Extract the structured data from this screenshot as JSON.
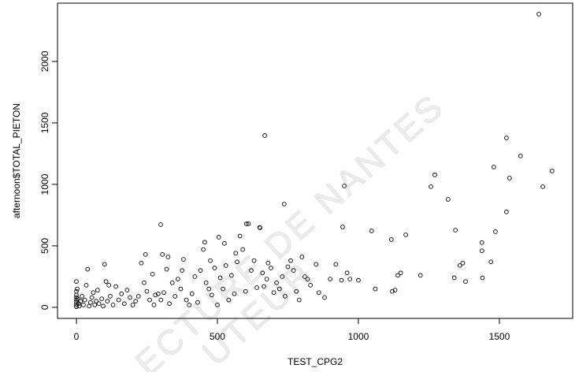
{
  "chart_data": {
    "type": "scatter",
    "x_label": "TEST_CPG2",
    "y_label": "afternoon$TOTAL_PIETON",
    "watermark": [
      "ECTURE DE NANTES",
      "UTEUR"
    ],
    "color": "#000000",
    "xlim": [
      -67,
      1760
    ],
    "ylim": [
      -90,
      2474
    ],
    "xticks": [
      0,
      500,
      1000,
      1500
    ],
    "yticks": [
      0,
      500,
      1000,
      1500,
      2000
    ],
    "x": [
      0,
      0,
      0,
      0,
      0,
      0,
      0,
      0,
      3,
      5,
      8,
      10,
      15,
      20,
      25,
      30,
      35,
      40,
      45,
      50,
      55,
      60,
      65,
      70,
      75,
      80,
      90,
      95,
      100,
      105,
      110,
      115,
      120,
      130,
      140,
      150,
      160,
      170,
      180,
      190,
      200,
      210,
      220,
      230,
      240,
      245,
      250,
      260,
      270,
      275,
      280,
      290,
      299,
      300,
      305,
      310,
      320,
      325,
      330,
      340,
      350,
      360,
      370,
      375,
      380,
      390,
      400,
      410,
      420,
      430,
      440,
      450,
      455,
      460,
      470,
      475,
      480,
      490,
      500,
      505,
      510,
      520,
      525,
      530,
      540,
      550,
      560,
      565,
      570,
      580,
      590,
      600,
      603,
      610,
      620,
      630,
      640,
      650,
      651,
      660,
      665,
      668,
      675,
      680,
      690,
      700,
      710,
      720,
      730,
      737,
      740,
      750,
      760,
      770,
      780,
      790,
      800,
      810,
      820,
      830,
      850,
      860,
      880,
      900,
      920,
      940,
      944,
      950,
      960,
      970,
      1000,
      1047,
      1060,
      1117,
      1120,
      1130,
      1140,
      1150,
      1168,
      1220,
      1257,
      1271,
      1318,
      1340,
      1344,
      1360,
      1370,
      1380,
      1438,
      1438,
      1440,
      1470,
      1480,
      1486,
      1525,
      1525,
      1536,
      1575,
      1640,
      1654,
      1687
    ],
    "y": [
      210,
      130,
      100,
      80,
      60,
      40,
      20,
      5,
      150,
      70,
      30,
      10,
      50,
      90,
      20,
      60,
      180,
      310,
      10,
      40,
      80,
      120,
      20,
      50,
      140,
      30,
      70,
      10,
      350,
      210,
      50,
      180,
      90,
      20,
      170,
      60,
      110,
      30,
      140,
      80,
      20,
      50,
      90,
      360,
      200,
      430,
      130,
      60,
      270,
      20,
      100,
      110,
      673,
      60,
      430,
      120,
      310,
      410,
      30,
      200,
      90,
      230,
      150,
      300,
      390,
      60,
      20,
      110,
      250,
      40,
      300,
      470,
      530,
      200,
      150,
      380,
      100,
      320,
      20,
      570,
      240,
      150,
      520,
      340,
      60,
      260,
      110,
      440,
      370,
      580,
      470,
      130,
      679,
      680,
      300,
      380,
      160,
      650,
      647,
      280,
      170,
      1397,
      230,
      360,
      320,
      120,
      200,
      150,
      250,
      840,
      90,
      330,
      380,
      300,
      130,
      60,
      410,
      250,
      230,
      180,
      350,
      120,
      80,
      230,
      350,
      220,
      654,
      987,
      280,
      230,
      220,
      622,
      150,
      551,
      130,
      140,
      260,
      280,
      590,
      260,
      981,
      1077,
      878,
      240,
      628,
      340,
      360,
      210,
      526,
      460,
      240,
      370,
      1141,
      615,
      1378,
      776,
      1051,
      1231,
      2385,
      981,
      1109
    ]
  }
}
